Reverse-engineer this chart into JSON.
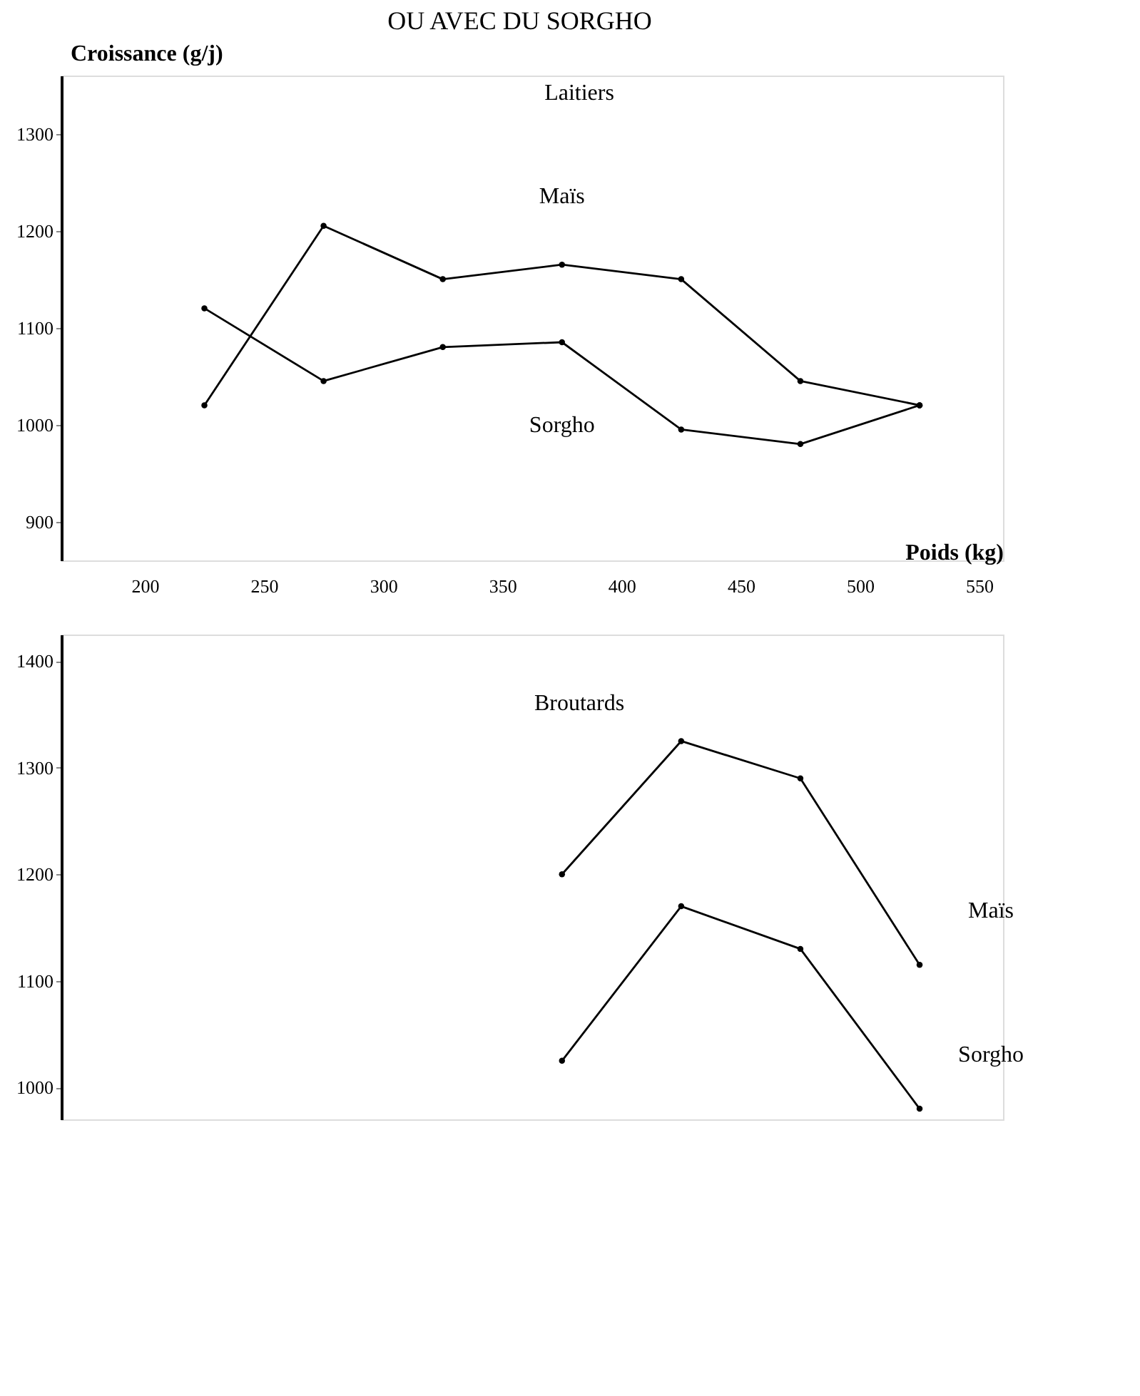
{
  "chart_data": [
    {
      "type": "line",
      "title": "Laitiers",
      "annotations": [
        "OU AVEC DU SORGHO"
      ],
      "ylabel": "Croissance (g/j)",
      "xlabel": "Poids (kg)",
      "marker": "circle",
      "x": [
        225,
        275,
        325,
        375,
        425,
        475,
        525
      ],
      "series": [
        {
          "name": "Maïs",
          "color": "#000000",
          "values": [
            1020,
            1205,
            1150,
            1165,
            1150,
            1045,
            1020
          ]
        },
        {
          "name": "Sorgho",
          "color": "#000000",
          "values": [
            1120,
            1045,
            1080,
            1085,
            995,
            980,
            1020
          ]
        }
      ],
      "xlim": [
        165,
        560
      ],
      "xticks": [
        200,
        250,
        300,
        350,
        400,
        450,
        500,
        550
      ],
      "ylim": [
        860,
        1360
      ],
      "yticks": [
        900,
        1000,
        1100,
        1200,
        1300
      ]
    },
    {
      "type": "line",
      "title": "Broutards",
      "marker": "circle",
      "tick_labels": "y",
      "x": [
        375,
        425,
        475,
        525
      ],
      "series": [
        {
          "name": "Maïs",
          "color": "#000000",
          "values": [
            1200,
            1325,
            1290,
            1115
          ]
        },
        {
          "name": "Sorgho",
          "color": "#000000",
          "values": [
            1025,
            1170,
            1130,
            980
          ]
        }
      ],
      "xlim": [
        165,
        560
      ],
      "ylim": [
        970,
        1425
      ],
      "yticks": [
        1000,
        1100,
        1200,
        1300,
        1400
      ]
    }
  ]
}
